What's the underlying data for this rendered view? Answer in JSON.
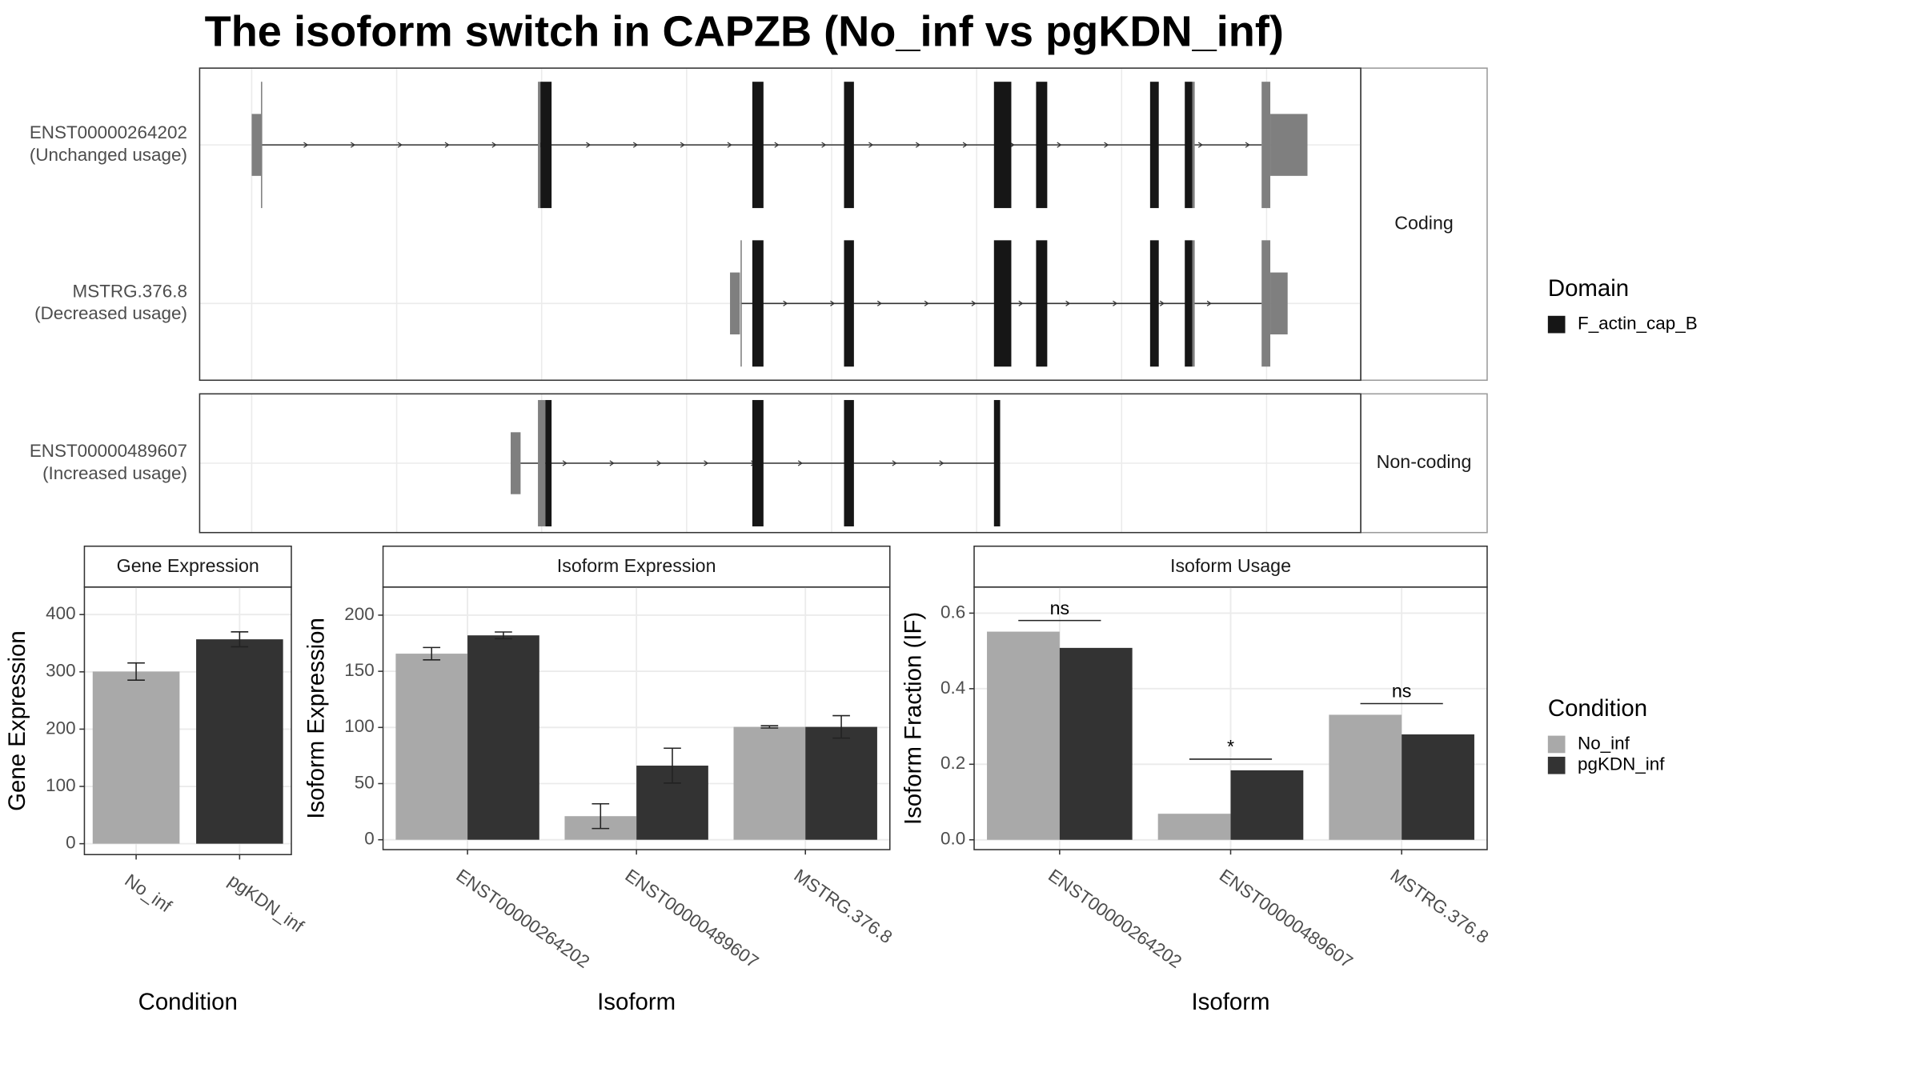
{
  "title": "The isoform switch in CAPZB (No_inf vs pgKDN_inf)",
  "transcripts": [
    {
      "name": "ENST00000264202",
      "usage": "(Unchanged usage)"
    },
    {
      "name": "MSTRG.376.8",
      "usage": "(Decreased usage)"
    },
    {
      "name": "ENST00000489607",
      "usage": "(Increased usage)"
    }
  ],
  "facets": [
    "Coding",
    "Non-coding"
  ],
  "domain_legend": {
    "title": "Domain",
    "items": [
      {
        "name": "F_actin_cap_B",
        "color": "#161616"
      }
    ]
  },
  "condition_legend_title": "Condition",
  "chart_data": [
    {
      "type": "bar",
      "title": "Gene Expression",
      "x_label": "Condition",
      "y_label": "Gene Expression",
      "categories": [
        "No_inf",
        "pgKDN_inf"
      ],
      "values": [
        300.5,
        356.8
      ],
      "errors": [
        15,
        13
      ],
      "colors": [
        "#a9a9a9",
        "#333333"
      ],
      "ylim": [
        -19,
        448
      ],
      "yticks": [
        0,
        100,
        200,
        300,
        400
      ],
      "grid": true
    },
    {
      "type": "grouped_bar",
      "title": "Isoform Expression",
      "x_label": "Isoform",
      "y_label": "Isoform Expression",
      "categories": [
        "ENST00000264202",
        "ENST00000489607",
        "MSTRG.376.8"
      ],
      "series": [
        {
          "name": "No_inf",
          "color": "#a9a9a9",
          "values": [
            165.7,
            21,
            100.5
          ],
          "errors": [
            5.5,
            11,
            1
          ]
        },
        {
          "name": "pgKDN_inf",
          "color": "#333333",
          "values": [
            182,
            66,
            100.5
          ],
          "errors": [
            3,
            15.5,
            10
          ]
        }
      ],
      "ylim": [
        -8.8,
        225
      ],
      "yticks": [
        0,
        50,
        100,
        150,
        200
      ],
      "grid": true
    },
    {
      "type": "grouped_bar",
      "title": "Isoform Usage",
      "x_label": "Isoform",
      "y_label": "Isoform Fraction (IF)",
      "categories": [
        "ENST00000264202",
        "ENST00000489607",
        "MSTRG.376.8"
      ],
      "series": [
        {
          "name": "No_inf",
          "color": "#a9a9a9",
          "values": [
            0.551,
            0.069,
            0.331
          ]
        },
        {
          "name": "pgKDN_inf",
          "color": "#333333",
          "values": [
            0.508,
            0.184,
            0.279
          ]
        }
      ],
      "significance": [
        "ns",
        "*",
        "ns"
      ],
      "ylim": [
        -0.026,
        0.669
      ],
      "yticks": [
        {
          "value": 0,
          "label": "0.0"
        },
        0.2,
        0.4,
        0.6
      ],
      "grid": true
    }
  ]
}
